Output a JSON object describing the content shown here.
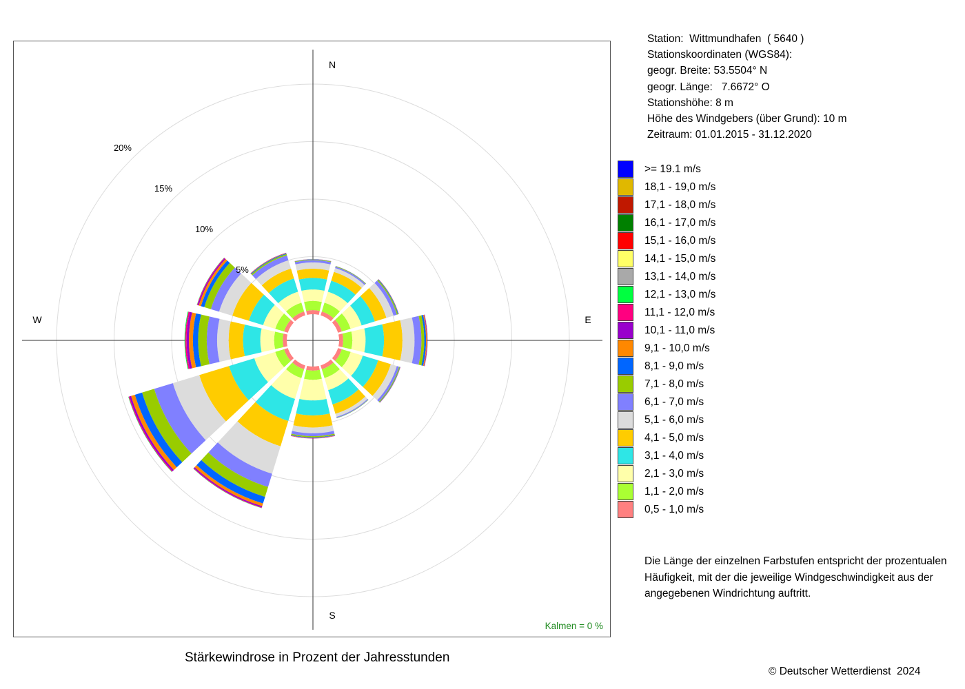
{
  "station_info": {
    "station": "Station:  Wittmundhafen  ( 5640 )",
    "coords_title": "Stationskoordinaten (WGS84):",
    "latitude": "geogr. Breite: 53.5504° N",
    "longitude": "geogr. Länge:   7.6672° O",
    "height": "Stationshöhe: 8 m",
    "sensor_height": "Höhe des Windgebers (über Grund): 10 m",
    "period": "Zeitraum: 01.01.2015 - 31.12.2020"
  },
  "legend": [
    {
      "label": ">= 19.1 m/s",
      "color": "#0000ff"
    },
    {
      "label": "18,1 - 19,0 m/s",
      "color": "#e0b800"
    },
    {
      "label": "17,1 - 18,0 m/s",
      "color": "#c01800"
    },
    {
      "label": "16,1 - 17,0 m/s",
      "color": "#008000"
    },
    {
      "label": "15,1 - 16,0 m/s",
      "color": "#ff0000"
    },
    {
      "label": "14,1 - 15,0 m/s",
      "color": "#ffff66"
    },
    {
      "label": "13,1 - 14,0 m/s",
      "color": "#a9a9a9"
    },
    {
      "label": "12,1 - 13,0 m/s",
      "color": "#00ff40"
    },
    {
      "label": "11,1 - 12,0 m/s",
      "color": "#ff0080"
    },
    {
      "label": "10,1 - 11,0 m/s",
      "color": "#9900cc"
    },
    {
      "label": "9,1 - 10,0 m/s",
      "color": "#ff8800"
    },
    {
      "label": "8,1 - 9,0 m/s",
      "color": "#0066ff"
    },
    {
      "label": "7,1 - 8,0 m/s",
      "color": "#99cc00"
    },
    {
      "label": "6,1 - 7,0 m/s",
      "color": "#8080ff"
    },
    {
      "label": "5,1 - 6,0 m/s",
      "color": "#dcdcdc"
    },
    {
      "label": "4,1 - 5,0 m/s",
      "color": "#ffcc00"
    },
    {
      "label": "3,1 - 4,0 m/s",
      "color": "#2ee6e6"
    },
    {
      "label": "2,1 - 3,0 m/s",
      "color": "#ffffaa"
    },
    {
      "label": "1,1 - 2,0 m/s",
      "color": "#aaff33"
    },
    {
      "label": "0,5 - 1,0 m/s",
      "color": "#ff8080"
    }
  ],
  "note": "Die Länge der einzelnen Farbstufen entspricht der prozentualen Häufigkeit, mit der die jeweilige Windgeschwindigkeit aus der angegebenen Windrichtung auftritt.",
  "caption": "Stärkewindrose in Prozent der Jahresstunden",
  "calm": "Kalmen  =  0 %",
  "copyright": "© Deutscher Wetterdienst  2024",
  "chart_data": {
    "type": "wind_rose",
    "title": "Stärkewindrose in Prozent der Jahresstunden",
    "unit": "%",
    "rings": [
      5,
      10,
      15,
      20
    ],
    "ring_labels": [
      "5%",
      "10%",
      "15%",
      "20%"
    ],
    "compass_labels": {
      "N": "N",
      "E": "E",
      "S": "S",
      "W": "W"
    },
    "calm_percent": 0,
    "speed_classes": [
      "0,5 - 1,0 m/s",
      "1,1 - 2,0 m/s",
      "2,1 - 3,0 m/s",
      "3,1 - 4,0 m/s",
      "4,1 - 5,0 m/s",
      "5,1 - 6,0 m/s",
      "6,1 - 7,0 m/s",
      "7,1 - 8,0 m/s",
      "8,1 - 9,0 m/s",
      "9,1 - 10,0 m/s",
      "10,1 - 11,0 m/s",
      "11,1 - 12,0 m/s",
      "12,1 - 13,0 m/s",
      "13,1 - 14,0 m/s",
      "14,1 - 15,0 m/s",
      "15,1 - 16,0 m/s",
      "16,1 - 17,0 m/s",
      "17,1 - 18,0 m/s",
      "18,1 - 19,0 m/s",
      ">= 19.1 m/s"
    ],
    "directions": [
      {
        "deg": 0,
        "values": [
          0.35,
          0.8,
          1.0,
          1.0,
          0.8,
          0.55,
          0.2,
          0.05,
          0.02,
          0.01,
          0.01,
          0,
          0,
          0,
          0,
          0,
          0,
          0,
          0,
          0
        ]
      },
      {
        "deg": 30,
        "values": [
          0.35,
          0.8,
          1.0,
          1.0,
          0.8,
          0.35,
          0.12,
          0.04,
          0.02,
          0.01,
          0,
          0,
          0,
          0,
          0,
          0,
          0,
          0,
          0,
          0
        ]
      },
      {
        "deg": 60,
        "values": [
          0.35,
          0.8,
          1.0,
          1.2,
          1.05,
          0.65,
          0.3,
          0.1,
          0.05,
          0.02,
          0.01,
          0,
          0,
          0,
          0,
          0,
          0,
          0,
          0,
          0
        ]
      },
      {
        "deg": 90,
        "values": [
          0.35,
          0.8,
          1.15,
          1.6,
          1.6,
          1.05,
          0.6,
          0.25,
          0.15,
          0.07,
          0.04,
          0.02,
          0.01,
          0,
          0,
          0,
          0,
          0,
          0,
          0
        ]
      },
      {
        "deg": 120,
        "values": [
          0.35,
          0.8,
          1.1,
          1.4,
          1.15,
          0.55,
          0.2,
          0.07,
          0.03,
          0.02,
          0.01,
          0,
          0,
          0,
          0,
          0,
          0,
          0,
          0,
          0
        ]
      },
      {
        "deg": 150,
        "values": [
          0.35,
          0.8,
          1.1,
          1.3,
          0.85,
          0.28,
          0.08,
          0.03,
          0.01,
          0,
          0,
          0,
          0,
          0,
          0,
          0,
          0,
          0,
          0,
          0
        ]
      },
      {
        "deg": 180,
        "values": [
          0.35,
          0.8,
          1.8,
          1.3,
          1.05,
          0.5,
          0.25,
          0.1,
          0.05,
          0.03,
          0.02,
          0.01,
          0,
          0,
          0,
          0,
          0,
          0,
          0,
          0
        ]
      },
      {
        "deg": 210,
        "values": [
          0.35,
          0.8,
          1.9,
          2.0,
          2.3,
          2.5,
          1.2,
          0.9,
          0.6,
          0.25,
          0.1,
          0.05,
          0.02,
          0,
          0,
          0,
          0,
          0,
          0,
          0
        ]
      },
      {
        "deg": 240,
        "values": [
          0.35,
          0.8,
          1.9,
          2.3,
          2.7,
          2.4,
          1.7,
          1.1,
          0.65,
          0.35,
          0.15,
          0.07,
          0.03,
          0,
          0,
          0,
          0,
          0,
          0,
          0
        ]
      },
      {
        "deg": 270,
        "values": [
          0.35,
          0.75,
          1.2,
          1.5,
          1.25,
          1.0,
          0.9,
          0.75,
          0.45,
          0.35,
          0.2,
          0.12,
          0.06,
          0,
          0,
          0,
          0,
          0,
          0,
          0
        ]
      },
      {
        "deg": 300,
        "values": [
          0.35,
          0.8,
          1.1,
          1.3,
          1.5,
          1.2,
          0.75,
          0.6,
          0.3,
          0.2,
          0.1,
          0.05,
          0.02,
          0,
          0,
          0,
          0,
          0,
          0,
          0
        ]
      },
      {
        "deg": 330,
        "values": [
          0.35,
          0.8,
          1.0,
          1.2,
          0.9,
          0.75,
          0.45,
          0.12,
          0.06,
          0.04,
          0.02,
          0,
          0,
          0,
          0,
          0,
          0,
          0,
          0,
          0
        ]
      }
    ]
  }
}
